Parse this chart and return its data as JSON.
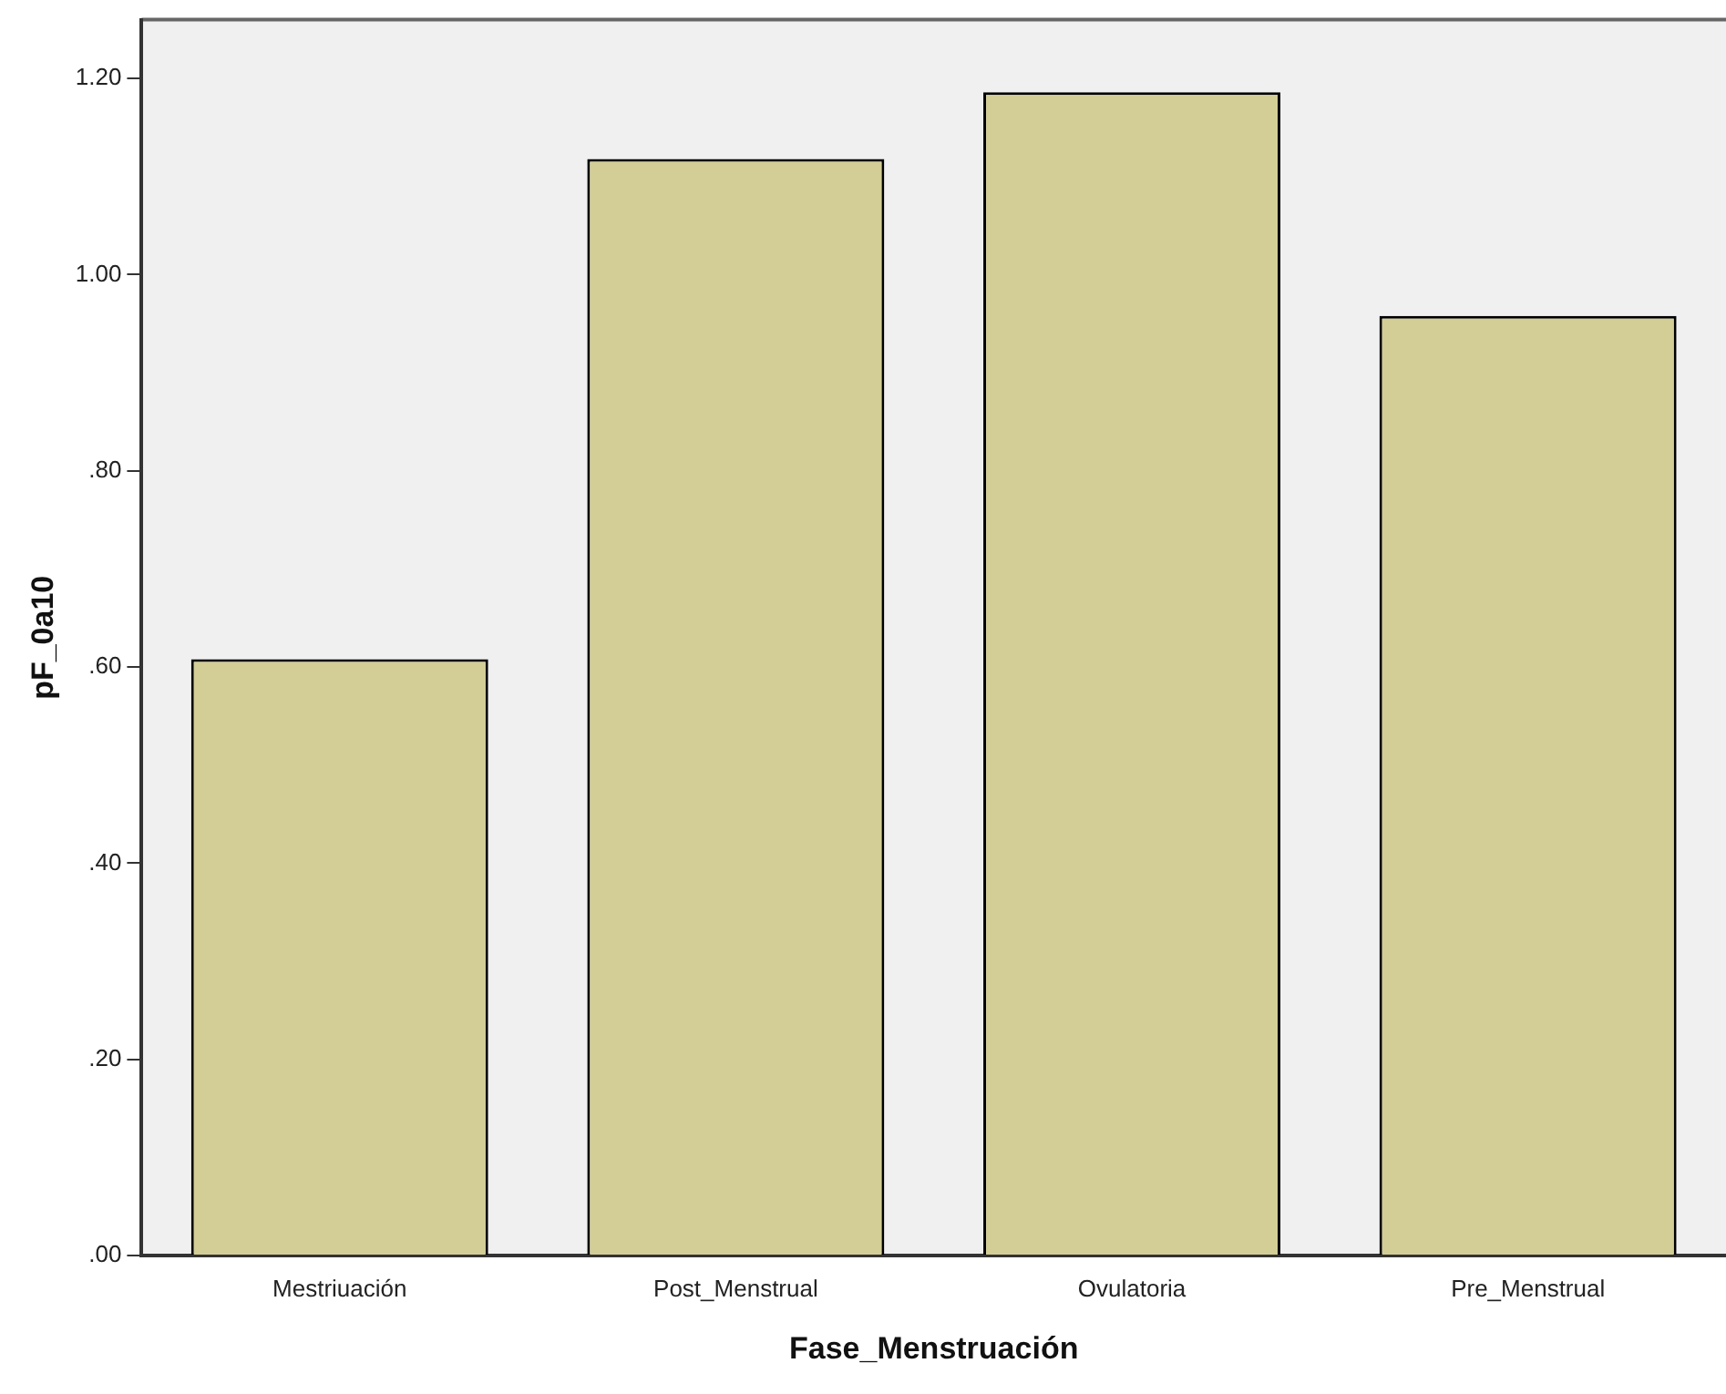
{
  "chart_data": {
    "type": "bar",
    "xlabel": "Fase_Menstruación",
    "ylabel": "pF_0a10",
    "categories": [
      "Mestriuación",
      "Post_Menstrual",
      "Ovulatoria",
      "Pre_Menstrual"
    ],
    "values": [
      0.608,
      1.118,
      1.186,
      0.958
    ],
    "color": "#d3cd96",
    "ylim": [
      0,
      1.26
    ],
    "yticks": [
      {
        "value": 0,
        "label": ".00"
      },
      {
        "value": 0.2,
        "label": ".20"
      },
      {
        "value": 0.4,
        "label": ".40"
      },
      {
        "value": 0.6,
        "label": ".60"
      },
      {
        "value": 0.8,
        "label": ".80"
      },
      {
        "value": 1,
        "label": "1.00"
      },
      {
        "value": 1.2,
        "label": "1.20"
      }
    ],
    "grid": false,
    "legend": false
  }
}
